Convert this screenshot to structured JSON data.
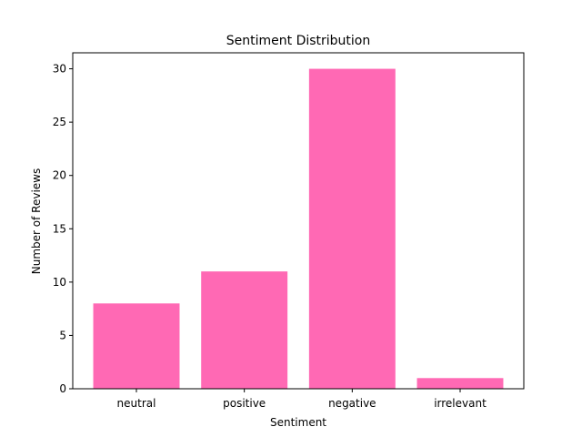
{
  "chart_data": {
    "type": "bar",
    "title": "Sentiment Distribution",
    "xlabel": "Sentiment",
    "ylabel": "Number of Reviews",
    "categories": [
      "neutral",
      "positive",
      "negative",
      "irrelevant"
    ],
    "values": [
      8,
      11,
      30,
      1
    ],
    "ylim": [
      0,
      31.5
    ],
    "yticks": [
      0,
      5,
      10,
      15,
      20,
      25,
      30
    ],
    "grid": false,
    "bar_color": "#ff69b4"
  }
}
